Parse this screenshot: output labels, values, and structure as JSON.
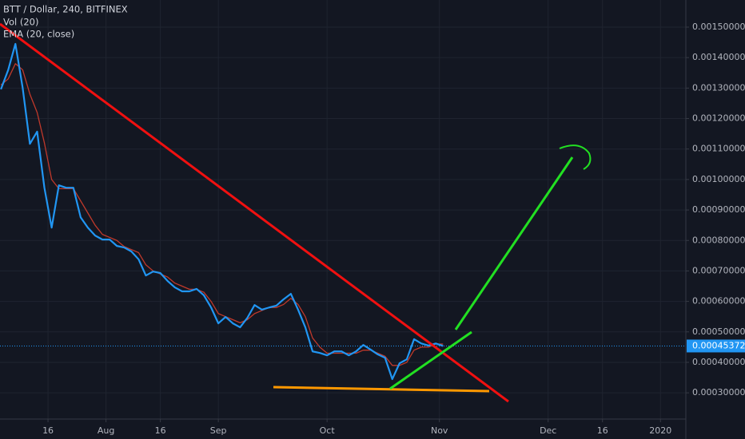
{
  "chart_data": {
    "type": "line",
    "title": "BTT / Dollar, 240, BITFINEX",
    "volume_label": "Vol (20)",
    "x": [
      2,
      4,
      6,
      8,
      10,
      12,
      14,
      16,
      18,
      20,
      22,
      24,
      26,
      28,
      30,
      32,
      34,
      36,
      38,
      40,
      42,
      44,
      46,
      48,
      50,
      52,
      54,
      56,
      58,
      60,
      62,
      64,
      66,
      68,
      70,
      72,
      74,
      76,
      78,
      80,
      82,
      84,
      86,
      88,
      90,
      92,
      94,
      96,
      98,
      100,
      102,
      104,
      106,
      108,
      110,
      112,
      114,
      116,
      118,
      120,
      122,
      124
    ],
    "series": [
      {
        "color": "#2196f3",
        "values": [
          0.001296,
          0.001359,
          0.001445,
          0.001301,
          0.001117,
          0.001157,
          0.000973,
          0.000842,
          0.000981,
          0.000973,
          0.000973,
          0.000876,
          0.000842,
          0.000816,
          0.000803,
          0.000803,
          0.000782,
          0.000777,
          0.000764,
          0.000738,
          0.000685,
          0.000698,
          0.000693,
          0.000667,
          0.000646,
          0.000633,
          0.000633,
          0.000641,
          0.00062,
          0.00058,
          0.000528,
          0.000549,
          0.000528,
          0.000515,
          0.000546,
          0.000588,
          0.000573,
          0.00058,
          0.000586,
          0.000607,
          0.000625,
          0.000573,
          0.000515,
          0.000436,
          0.000431,
          0.000423,
          0.000436,
          0.000436,
          0.000423,
          0.000436,
          0.000457,
          0.000442,
          0.000426,
          0.000415,
          0.000345,
          0.000397,
          0.00041,
          0.000476,
          0.000462,
          0.000455,
          0.000462,
          0.00045372
        ]
      },
      {
        "name": "EMA (20, close)",
        "color": "#c0392b",
        "values": [
          0.00131,
          0.00133,
          0.00138,
          0.00136,
          0.00128,
          0.00122,
          0.00112,
          0.001,
          0.00097,
          0.00097,
          0.00097,
          0.00093,
          0.00089,
          0.00085,
          0.00082,
          0.00081,
          0.0008,
          0.00078,
          0.00077,
          0.00076,
          0.00072,
          0.0007,
          0.00069,
          0.00068,
          0.00066,
          0.00065,
          0.00064,
          0.00064,
          0.00063,
          0.0006,
          0.00056,
          0.00055,
          0.00054,
          0.00053,
          0.00054,
          0.00056,
          0.00057,
          0.00058,
          0.00058,
          0.00059,
          0.00061,
          0.00059,
          0.00055,
          0.00048,
          0.00045,
          0.00043,
          0.00043,
          0.00043,
          0.00043,
          0.00043,
          0.00044,
          0.00044,
          0.00043,
          0.00042,
          0.00039,
          0.00039,
          0.0004,
          0.00044,
          0.00045,
          0.00045,
          0.00046,
          0.00046
        ]
      }
    ],
    "xlim": [
      1.75,
      191
    ],
    "xticks": [
      {
        "value": 15,
        "label": "16"
      },
      {
        "value": 31,
        "label": "Aug"
      },
      {
        "value": 46,
        "label": "16"
      },
      {
        "value": 62,
        "label": "Sep"
      },
      {
        "value": 92,
        "label": "Oct"
      },
      {
        "value": 123,
        "label": "Nov"
      },
      {
        "value": 153,
        "label": "Dec"
      },
      {
        "value": 168,
        "label": "16"
      },
      {
        "value": 184,
        "label": "2020"
      }
    ],
    "ylim": [
      0.000214,
      0.001589
    ],
    "yticks": [
      {
        "value": 0.0003,
        "label": "0.00030000"
      },
      {
        "value": 0.0004,
        "label": "0.00040000"
      },
      {
        "value": 0.0005,
        "label": "0.00050000"
      },
      {
        "value": 0.0006,
        "label": "0.00060000"
      },
      {
        "value": 0.0007,
        "label": "0.00070000"
      },
      {
        "value": 0.0008,
        "label": "0.00080000"
      },
      {
        "value": 0.0009,
        "label": "0.00090000"
      },
      {
        "value": 0.001,
        "label": "0.00100000"
      },
      {
        "value": 0.0011,
        "label": "0.00110000"
      },
      {
        "value": 0.0012,
        "label": "0.00120000"
      },
      {
        "value": 0.0013,
        "label": "0.00130000"
      },
      {
        "value": 0.0014,
        "label": "0.00140000"
      },
      {
        "value": 0.0015,
        "label": "0.00150000"
      }
    ],
    "grid": true
  }
}
